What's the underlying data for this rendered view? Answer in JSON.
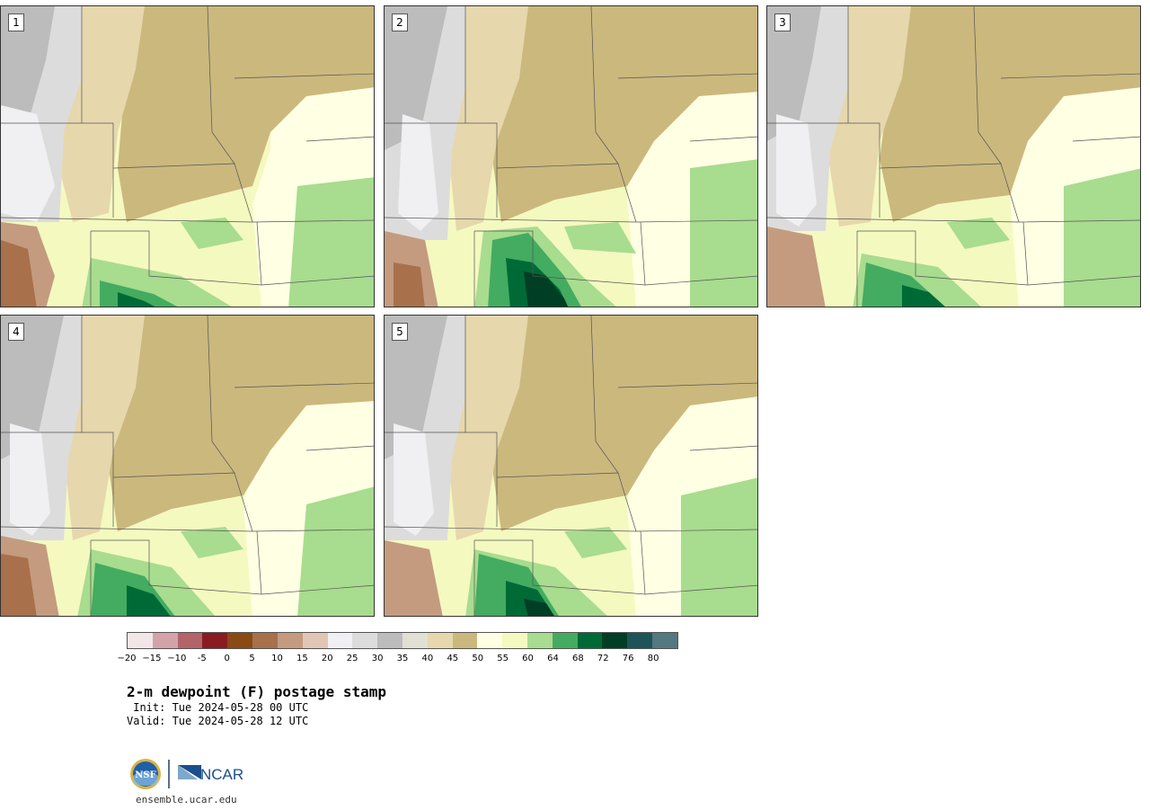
{
  "panels": [
    {
      "label": "1"
    },
    {
      "label": "2"
    },
    {
      "label": "3"
    },
    {
      "label": "4"
    },
    {
      "label": "5"
    }
  ],
  "colorbar": {
    "colors": [
      "#f3e6e8",
      "#d4a3aa",
      "#b46469",
      "#8a1b23",
      "#8a4a14",
      "#a8704b",
      "#c49b7f",
      "#e0c6b5",
      "#f0f0f2",
      "#dcdcdc",
      "#bcbcbc",
      "#e1e0d4",
      "#e6d7ad",
      "#cbb87d",
      "#ffffe3",
      "#f4f9c0",
      "#a8dc8f",
      "#43ac60",
      "#006a37",
      "#003e25",
      "#1e5457",
      "#527880"
    ],
    "ticks": [
      "−20",
      "−15",
      "−10",
      "-5",
      "0",
      "5",
      "10",
      "15",
      "20",
      "25",
      "30",
      "35",
      "40",
      "45",
      "50",
      "55",
      "60",
      "64",
      "68",
      "72",
      "76",
      "80"
    ]
  },
  "title": "2-m dewpoint (F) postage stamp",
  "init": " Init: Tue 2024-05-28 00 UTC",
  "valid": "Valid: Tue 2024-05-28 12 UTC",
  "logos": {
    "nsf": "NSF",
    "ncar": "NCAR"
  },
  "website": "ensemble.ucar.edu"
}
